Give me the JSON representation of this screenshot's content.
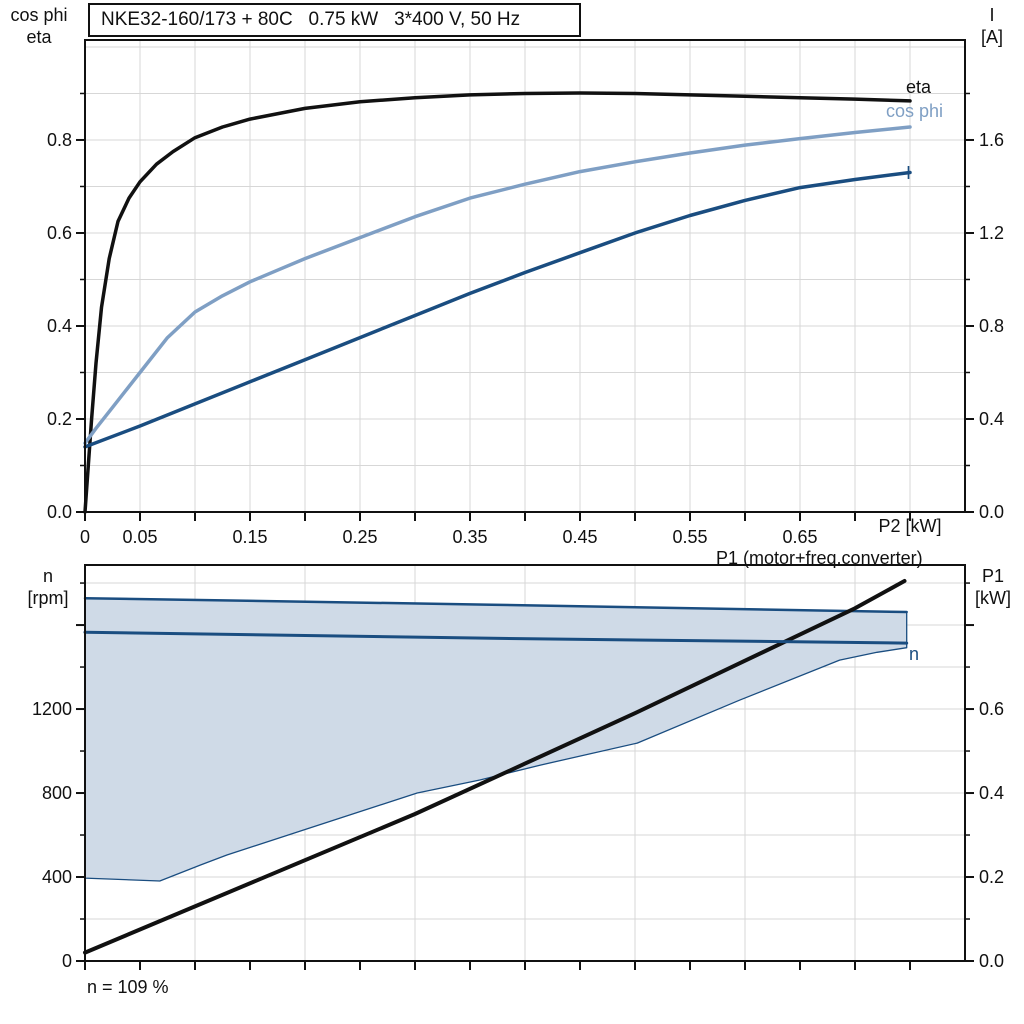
{
  "colors": {
    "black_curve": "#111111",
    "light_blue": "#7F9FC4",
    "dark_blue": "#1A4D80",
    "band_fill": "#CFDAE7",
    "grid": "#D7D7D7",
    "axis": "#111111"
  },
  "footnote": "n = 109 %",
  "chart_data": [
    {
      "type": "line",
      "title": "NKE32-160/173 + 80C   0.75 kW   3*400 V, 50 Hz",
      "x_axis": {
        "label": "P2 [kW]",
        "min": 0,
        "max": 0.8,
        "tick_step": 0.05,
        "grid_step": 0.05,
        "labeled_ticks": [
          [
            0,
            "0"
          ],
          [
            0.05,
            "0.05"
          ],
          [
            0.15,
            "0.15"
          ],
          [
            0.25,
            "0.25"
          ],
          [
            0.35,
            "0.35"
          ],
          [
            0.45,
            "0.45"
          ],
          [
            0.55,
            "0.55"
          ],
          [
            0.65,
            "0.65"
          ]
        ],
        "label_position": 0.75
      },
      "y_left": {
        "title_line1": "cos phi",
        "title_line2": "eta",
        "min": 0,
        "max": 1.015,
        "grid_step": 0.1,
        "labeled_ticks": [
          [
            0,
            "0.0"
          ],
          [
            0.2,
            "0.2"
          ],
          [
            0.4,
            "0.4"
          ],
          [
            0.6,
            "0.6"
          ],
          [
            0.8,
            "0.8"
          ]
        ],
        "minor_ticks": [
          0.1,
          0.3,
          0.5,
          0.7,
          0.9
        ]
      },
      "y_right": {
        "title_line1": "I",
        "title_line2": "[A]",
        "min": 0,
        "max": 2.03,
        "labeled_ticks": [
          [
            0,
            "0.0"
          ],
          [
            0.4,
            "0.4"
          ],
          [
            0.8,
            "0.8"
          ],
          [
            1.2,
            "1.2"
          ],
          [
            1.6,
            "1.6"
          ]
        ],
        "minor_ticks": [
          0.2,
          0.6,
          1.0,
          1.4,
          1.8
        ]
      },
      "series": [
        {
          "name": "eta",
          "axis": "left",
          "color": "#111111",
          "width": 3.5,
          "x": [
            0,
            0.003,
            0.006,
            0.01,
            0.015,
            0.022,
            0.03,
            0.04,
            0.05,
            0.065,
            0.08,
            0.1,
            0.125,
            0.15,
            0.2,
            0.25,
            0.3,
            0.35,
            0.4,
            0.45,
            0.5,
            0.55,
            0.6,
            0.65,
            0.7,
            0.75
          ],
          "y": [
            0,
            0.1,
            0.2,
            0.32,
            0.44,
            0.545,
            0.625,
            0.675,
            0.71,
            0.748,
            0.775,
            0.805,
            0.828,
            0.845,
            0.868,
            0.882,
            0.891,
            0.897,
            0.9,
            0.901,
            0.9,
            0.897,
            0.894,
            0.891,
            0.888,
            0.884
          ]
        },
        {
          "name": "cos phi",
          "axis": "left",
          "color": "#7F9FC4",
          "width": 3.5,
          "x": [
            0,
            0.01,
            0.025,
            0.05,
            0.075,
            0.1,
            0.125,
            0.15,
            0.175,
            0.2,
            0.25,
            0.3,
            0.35,
            0.4,
            0.45,
            0.5,
            0.55,
            0.6,
            0.65,
            0.7,
            0.75
          ],
          "y": [
            0.148,
            0.18,
            0.225,
            0.3,
            0.375,
            0.43,
            0.465,
            0.495,
            0.52,
            0.545,
            0.59,
            0.635,
            0.675,
            0.705,
            0.732,
            0.753,
            0.772,
            0.789,
            0.803,
            0.816,
            0.828
          ]
        },
        {
          "name": "I",
          "axis": "right",
          "color": "#1A4D80",
          "width": 3.5,
          "x": [
            0,
            0.05,
            0.1,
            0.15,
            0.2,
            0.25,
            0.3,
            0.35,
            0.4,
            0.45,
            0.5,
            0.55,
            0.6,
            0.65,
            0.7,
            0.75
          ],
          "y": [
            0.28,
            0.37,
            0.465,
            0.56,
            0.655,
            0.75,
            0.845,
            0.94,
            1.03,
            1.115,
            1.2,
            1.275,
            1.34,
            1.395,
            1.43,
            1.46
          ]
        }
      ]
    },
    {
      "type": "line+area",
      "annotation": "P1 (motor+freq.converter)",
      "x_axis": {
        "label": "",
        "min": 0,
        "max": 0.8,
        "tick_step": 0.05,
        "grid_step": 0.1
      },
      "y_left": {
        "title_line1": "n",
        "title_line2": "[rpm]",
        "min": 0,
        "max": 1886,
        "grid_step": 200,
        "labeled_ticks": [
          [
            0,
            "0"
          ],
          [
            400,
            "400"
          ],
          [
            800,
            "800"
          ],
          [
            1200,
            "1200"
          ]
        ],
        "major_ticks": [
          0,
          400,
          800,
          1200,
          1600
        ],
        "minor_ticks": [
          200,
          600,
          1000,
          1400,
          1800
        ]
      },
      "y_right": {
        "title_line1": "P1",
        "title_line2": "[kW]",
        "min": 0,
        "max": 0.943,
        "labeled_ticks": [
          [
            0,
            "0.0"
          ],
          [
            0.2,
            "0.2"
          ],
          [
            0.4,
            "0.4"
          ],
          [
            0.6,
            "0.6"
          ]
        ],
        "major_ticks": [
          0,
          0.2,
          0.4,
          0.6,
          0.8
        ],
        "minor_ticks": [
          0.1,
          0.3,
          0.5,
          0.7,
          0.9
        ]
      },
      "band": {
        "fill": "#CFDAE7",
        "edge": "#1A4D80",
        "upper": {
          "x": [
            0,
            0.37,
            0.747
          ],
          "y": [
            1728,
            1697,
            1662
          ]
        },
        "lower": {
          "x": [
            0,
            0.068,
            0.105,
            0.129,
            0.198,
            0.302,
            0.359,
            0.414,
            0.502,
            0.595,
            0.686,
            0.72,
            0.747
          ],
          "y": [
            395,
            381,
            457,
            505,
            623,
            800,
            862,
            933,
            1038,
            1242,
            1433,
            1470,
            1492
          ]
        }
      },
      "series": [
        {
          "name": "P1 (motor+freq.converter)",
          "axis": "right",
          "color": "#111111",
          "width": 4,
          "x": [
            0,
            0.1,
            0.2,
            0.3,
            0.4,
            0.5,
            0.6,
            0.7,
            0.745
          ],
          "y": [
            0.02,
            0.13,
            0.24,
            0.35,
            0.47,
            0.59,
            0.715,
            0.84,
            0.905
          ]
        },
        {
          "name": "n",
          "axis": "left",
          "color": "#1A4D80",
          "width": 3,
          "x": [
            0,
            0.37,
            0.747
          ],
          "y": [
            1566,
            1537,
            1514
          ]
        }
      ]
    }
  ]
}
